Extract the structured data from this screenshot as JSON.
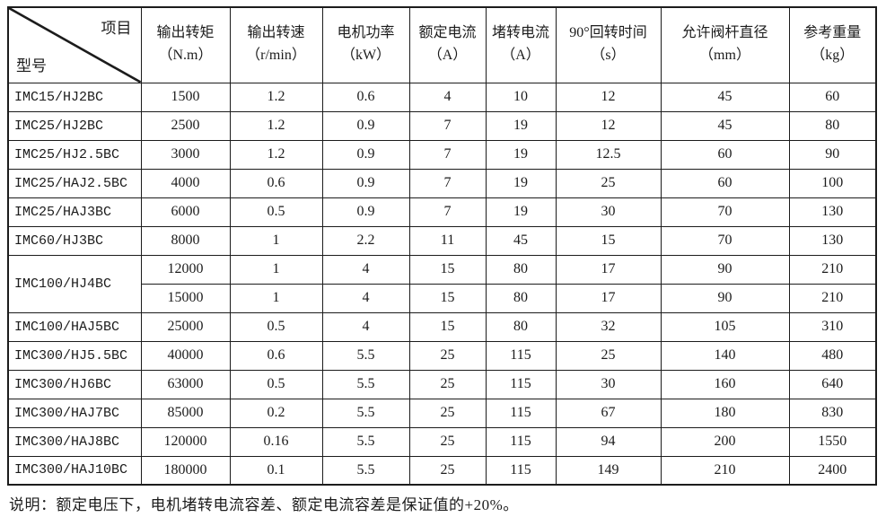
{
  "table": {
    "corner": {
      "top_right": "项目",
      "bottom_left": "型号"
    },
    "columns": [
      {
        "name": "输出转矩",
        "unit": "（N.m）"
      },
      {
        "name": "输出转速",
        "unit": "（r/min）"
      },
      {
        "name": "电机功率",
        "unit": "（kW）"
      },
      {
        "name": "额定电流",
        "unit": "（A）"
      },
      {
        "name": "堵转电流",
        "unit": "（A）"
      },
      {
        "name": "90°回转时间",
        "unit": "（s）"
      },
      {
        "name": "允许阀杆直径",
        "unit": "（mm）"
      },
      {
        "name": "参考重量",
        "unit": "（kg）"
      }
    ],
    "rows": [
      {
        "model": "IMC15/HJ2BC",
        "rowspan": 1,
        "values": [
          "1500",
          "1.2",
          "0.6",
          "4",
          "10",
          "12",
          "45",
          "60"
        ]
      },
      {
        "model": "IMC25/HJ2BC",
        "rowspan": 1,
        "values": [
          "2500",
          "1.2",
          "0.9",
          "7",
          "19",
          "12",
          "45",
          "80"
        ]
      },
      {
        "model": "IMC25/HJ2.5BC",
        "rowspan": 1,
        "values": [
          "3000",
          "1.2",
          "0.9",
          "7",
          "19",
          "12.5",
          "60",
          "90"
        ]
      },
      {
        "model": "IMC25/HAJ2.5BC",
        "rowspan": 1,
        "values": [
          "4000",
          "0.6",
          "0.9",
          "7",
          "19",
          "25",
          "60",
          "100"
        ]
      },
      {
        "model": "IMC25/HAJ3BC",
        "rowspan": 1,
        "values": [
          "6000",
          "0.5",
          "0.9",
          "7",
          "19",
          "30",
          "70",
          "130"
        ]
      },
      {
        "model": "IMC60/HJ3BC",
        "rowspan": 1,
        "values": [
          "8000",
          "1",
          "2.2",
          "11",
          "45",
          "15",
          "70",
          "130"
        ]
      },
      {
        "model": "IMC100/HJ4BC",
        "rowspan": 2,
        "values": [
          "12000",
          "1",
          "4",
          "15",
          "80",
          "17",
          "90",
          "210"
        ]
      },
      {
        "model": null,
        "rowspan": 0,
        "values": [
          "15000",
          "1",
          "4",
          "15",
          "80",
          "17",
          "90",
          "210"
        ]
      },
      {
        "model": "IMC100/HAJ5BC",
        "rowspan": 1,
        "values": [
          "25000",
          "0.5",
          "4",
          "15",
          "80",
          "32",
          "105",
          "310"
        ]
      },
      {
        "model": "IMC300/HJ5.5BC",
        "rowspan": 1,
        "values": [
          "40000",
          "0.6",
          "5.5",
          "25",
          "115",
          "25",
          "140",
          "480"
        ]
      },
      {
        "model": "IMC300/HJ6BC",
        "rowspan": 1,
        "values": [
          "63000",
          "0.5",
          "5.5",
          "25",
          "115",
          "30",
          "160",
          "640"
        ]
      },
      {
        "model": "IMC300/HAJ7BC",
        "rowspan": 1,
        "values": [
          "85000",
          "0.2",
          "5.5",
          "25",
          "115",
          "67",
          "180",
          "830"
        ]
      },
      {
        "model": "IMC300/HAJ8BC",
        "rowspan": 1,
        "values": [
          "120000",
          "0.16",
          "5.5",
          "25",
          "115",
          "94",
          "200",
          "1550"
        ]
      },
      {
        "model": "IMC300/HAJ10BC",
        "rowspan": 1,
        "values": [
          "180000",
          "0.1",
          "5.5",
          "25",
          "115",
          "149",
          "210",
          "2400"
        ]
      }
    ]
  },
  "note": "说明：额定电压下，电机堵转电流容差、额定电流容差是保证值的+20%。"
}
